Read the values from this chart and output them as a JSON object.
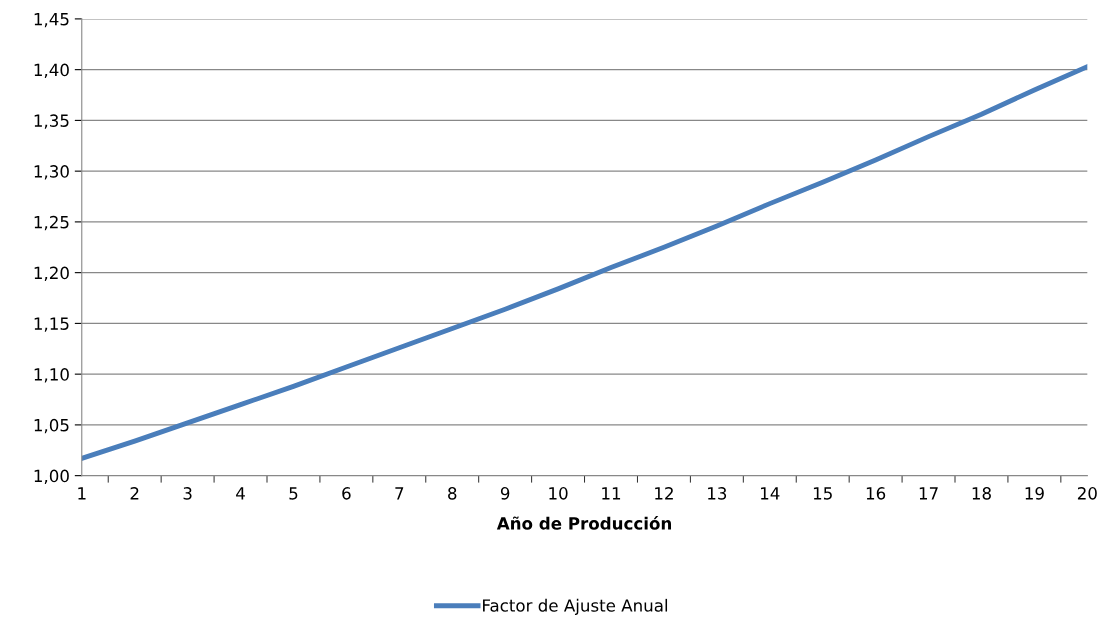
{
  "chart_data": {
    "type": "line",
    "xlabel": "Año de Producción",
    "categories": [
      "1",
      "2",
      "3",
      "4",
      "5",
      "6",
      "7",
      "8",
      "9",
      "10",
      "11",
      "12",
      "13",
      "14",
      "15",
      "16",
      "17",
      "18",
      "19",
      "20"
    ],
    "series": [
      {
        "name": "Factor de Ajuste Anual",
        "color": "#4a7ebb",
        "values": [
          1.017,
          1.034,
          1.052,
          1.07,
          1.088,
          1.107,
          1.126,
          1.145,
          1.164,
          1.184,
          1.205,
          1.225,
          1.246,
          1.268,
          1.289,
          1.311,
          1.334,
          1.356,
          1.38,
          1.403
        ]
      }
    ],
    "ylim": [
      1.0,
      1.45
    ],
    "yticks": [
      {
        "value": 1.0,
        "label": "1,00"
      },
      {
        "value": 1.05,
        "label": "1,05"
      },
      {
        "value": 1.1,
        "label": "1,10"
      },
      {
        "value": 1.15,
        "label": "1,15"
      },
      {
        "value": 1.2,
        "label": "1,20"
      },
      {
        "value": 1.25,
        "label": "1,25"
      },
      {
        "value": 1.3,
        "label": "1,30"
      },
      {
        "value": 1.35,
        "label": "1,35"
      },
      {
        "value": 1.4,
        "label": "1,40"
      },
      {
        "value": 1.45,
        "label": "1,45"
      }
    ],
    "grid": "y",
    "legend": "bottom",
    "marker": "none",
    "line_style": "solid"
  }
}
